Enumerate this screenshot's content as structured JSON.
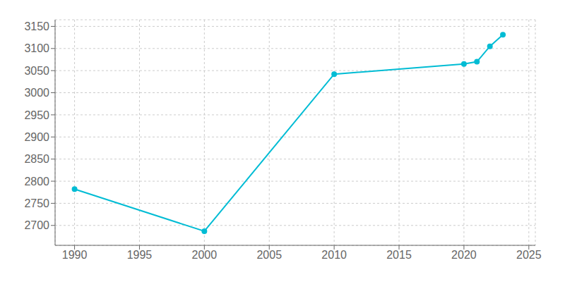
{
  "chart_data": {
    "type": "line",
    "x": [
      1990,
      2000,
      2010,
      2020,
      2021,
      2022,
      2023
    ],
    "values": [
      2782,
      2687,
      3042,
      3065,
      3070,
      3105,
      3131
    ],
    "color": "#00bcd4",
    "marker": "circle",
    "xlim": [
      1988.5,
      2025.5
    ],
    "ylim": [
      2655,
      3165
    ],
    "xticks": [
      1990,
      1995,
      2000,
      2005,
      2010,
      2015,
      2020,
      2025
    ],
    "yticks": [
      2700,
      2750,
      2800,
      2850,
      2900,
      2950,
      3000,
      3050,
      3100,
      3150
    ],
    "grid": true
  }
}
